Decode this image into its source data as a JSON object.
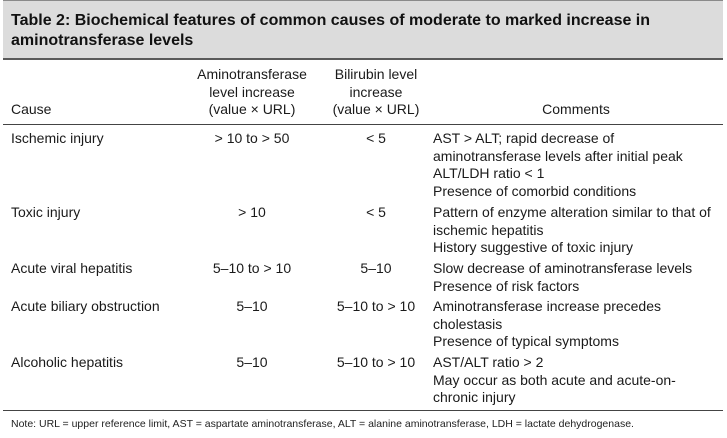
{
  "table": {
    "title": "Table 2: Biochemical features of common causes of moderate to marked increase in aminotransferase levels",
    "headers": {
      "cause": "Cause",
      "amino": [
        "Aminotransferase",
        "level increase",
        "(value × URL)"
      ],
      "bili": [
        "Bilirubin level",
        "increase",
        "(value × URL)"
      ],
      "comments": "Comments"
    },
    "rows": [
      {
        "cause": "Ischemic injury",
        "amino": "> 10 to  > 50",
        "bili": "< 5",
        "comments": [
          "AST > ALT; rapid decrease of",
          "aminotransferase levels after initial peak",
          "ALT/LDH ratio < 1",
          "Presence of comorbid conditions"
        ]
      },
      {
        "cause": "Toxic injury",
        "amino": "> 10",
        "bili": "< 5",
        "comments": [
          "Pattern of enzyme alteration similar to that of",
          "ischemic hepatitis",
          "History suggestive of toxic injury"
        ]
      },
      {
        "cause": "Acute viral hepatitis",
        "amino": "5–10 to  > 10",
        "bili": "5–10",
        "comments": [
          "Slow decrease of aminotransferase levels",
          "Presence of risk factors"
        ]
      },
      {
        "cause": "Acute biliary obstruction",
        "amino": "5–10",
        "bili": "5–10 to > 10",
        "comments": [
          "Aminotransferase increase precedes",
          "cholestasis",
          "Presence of typical symptoms"
        ]
      },
      {
        "cause": "Alcoholic hepatitis",
        "amino": "5–10",
        "bili": "5–10 to > 10",
        "comments": [
          "AST/ALT ratio > 2",
          "May occur as both acute and acute-on-",
          "chronic injury"
        ]
      }
    ],
    "note": "Note: URL = upper reference limit, AST = aspartate aminotransferase, ALT = alanine aminotransferase, LDH = lactate dehydrogenase."
  }
}
